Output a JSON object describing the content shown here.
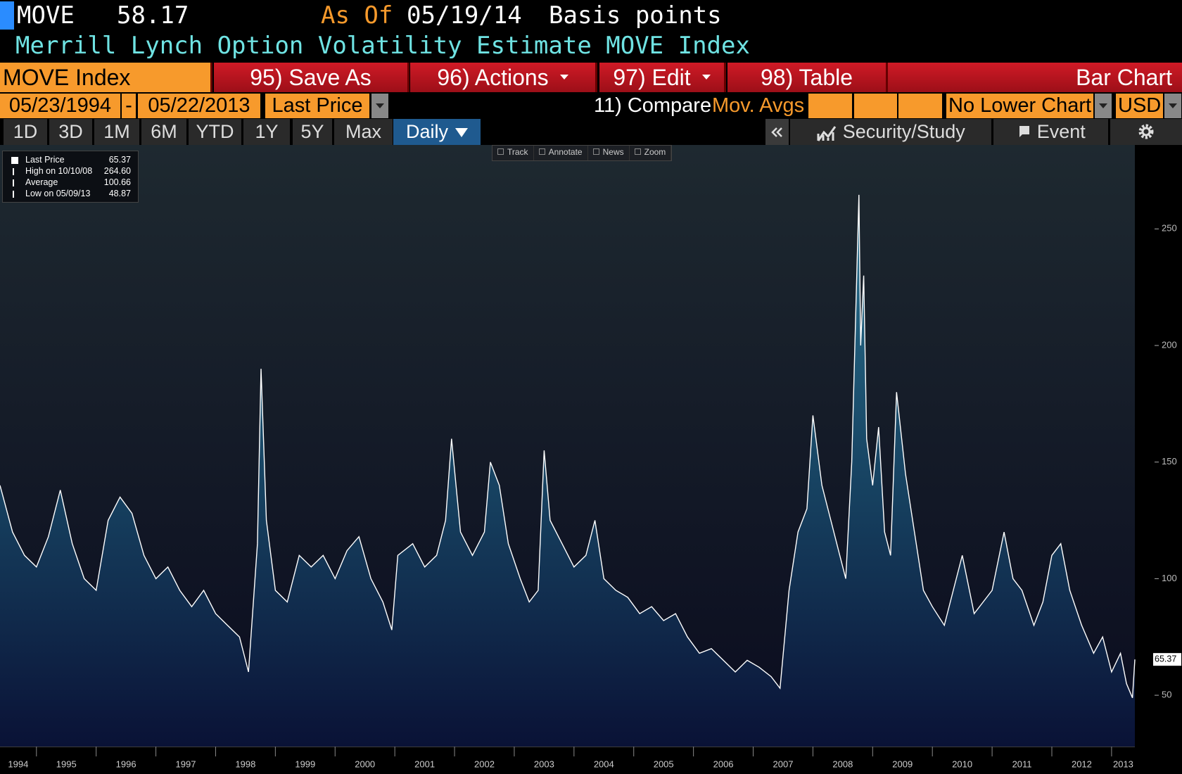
{
  "header": {
    "ticker": "MOVE",
    "last": "58.17",
    "as_of_label": "As Of",
    "as_of_date": "05/19/14",
    "units": "Basis points",
    "description": "Merrill Lynch Option Volatility Estimate MOVE Index"
  },
  "toolbar": {
    "security": "MOVE Index",
    "buttons": [
      "95) Save As",
      "96) Actions",
      "97) Edit",
      "98) Table"
    ],
    "chart_kind": "Bar Chart"
  },
  "range_bar": {
    "start_date": "05/23/1994",
    "separator": "-",
    "end_date": "05/22/2013",
    "field": "Last Price",
    "compare": "11) Compare",
    "mov_avgs": "Mov. Avgs",
    "lower_chart": "No Lower Chart",
    "currency": "USD"
  },
  "periods": [
    "1D",
    "3D",
    "1M",
    "6M",
    "YTD",
    "1Y",
    "5Y",
    "Max",
    "Daily"
  ],
  "right_tools": [
    "Security/Study",
    "Event"
  ],
  "chart_tools": [
    "Track",
    "Annotate",
    "News",
    "Zoom"
  ],
  "legend": {
    "rows": [
      {
        "value": "65.37"
      },
      {
        "label": "High on 10/10/08",
        "value": "264.60"
      },
      {
        "label": "Average",
        "value": "100.66"
      },
      {
        "label": "Low on 05/09/13",
        "value": "48.87"
      }
    ]
  },
  "chart_data": {
    "type": "area",
    "x": [
      1994.39,
      1994.6,
      1994.8,
      1995.0,
      1995.2,
      1995.4,
      1995.6,
      1995.8,
      1996.0,
      1996.2,
      1996.4,
      1996.6,
      1996.8,
      1997.0,
      1997.2,
      1997.4,
      1997.6,
      1997.8,
      1998.0,
      1998.2,
      1998.4,
      1998.55,
      1998.7,
      1998.76,
      1998.85,
      1999.0,
      1999.2,
      1999.4,
      1999.6,
      1999.8,
      2000.0,
      2000.2,
      2000.4,
      2000.6,
      2000.8,
      2000.95,
      2001.05,
      2001.3,
      2001.5,
      2001.7,
      2001.85,
      2001.95,
      2002.1,
      2002.3,
      2002.5,
      2002.6,
      2002.75,
      2002.9,
      2003.1,
      2003.25,
      2003.4,
      2003.5,
      2003.6,
      2003.8,
      2004.0,
      2004.2,
      2004.35,
      2004.5,
      2004.7,
      2004.9,
      2005.1,
      2005.3,
      2005.5,
      2005.7,
      2005.9,
      2006.1,
      2006.3,
      2006.5,
      2006.7,
      2006.9,
      2007.1,
      2007.3,
      2007.45,
      2007.6,
      2007.75,
      2007.9,
      2008.0,
      2008.15,
      2008.3,
      2008.45,
      2008.55,
      2008.65,
      2008.77,
      2008.8,
      2008.85,
      2008.9,
      2009.0,
      2009.1,
      2009.2,
      2009.3,
      2009.4,
      2009.55,
      2009.7,
      2009.85,
      2010.0,
      2010.2,
      2010.35,
      2010.5,
      2010.7,
      2010.85,
      2011.0,
      2011.2,
      2011.35,
      2011.5,
      2011.7,
      2011.85,
      2012.0,
      2012.15,
      2012.3,
      2012.5,
      2012.7,
      2012.85,
      2013.0,
      2013.15,
      2013.25,
      2013.35,
      2013.39
    ],
    "series": [
      {
        "name": "Last Price",
        "color": "#ffffff",
        "values": [
          140,
          120,
          110,
          105,
          118,
          138,
          115,
          100,
          95,
          125,
          135,
          128,
          110,
          100,
          105,
          95,
          88,
          95,
          85,
          80,
          75,
          60,
          115,
          190,
          125,
          95,
          90,
          110,
          105,
          110,
          100,
          112,
          118,
          100,
          90,
          78,
          110,
          115,
          105,
          110,
          125,
          160,
          120,
          110,
          120,
          150,
          140,
          115,
          100,
          90,
          95,
          155,
          125,
          115,
          105,
          110,
          125,
          100,
          95,
          92,
          85,
          88,
          82,
          85,
          75,
          68,
          70,
          65,
          60,
          65,
          62,
          58,
          53,
          95,
          120,
          130,
          170,
          140,
          125,
          110,
          100,
          150,
          264.6,
          200,
          230,
          160,
          140,
          165,
          120,
          110,
          180,
          145,
          120,
          95,
          88,
          80,
          95,
          110,
          85,
          90,
          95,
          120,
          100,
          95,
          80,
          90,
          110,
          115,
          95,
          80,
          68,
          75,
          60,
          68,
          55,
          48.87,
          65.37
        ]
      }
    ],
    "xlim": [
      1994.39,
      2013.39
    ],
    "ylim": [
      28,
      286
    ],
    "xticks": [
      {
        "value": 1994.5,
        "label": "1994"
      },
      {
        "value": 1995.5,
        "label": "1995"
      },
      {
        "value": 1996.5,
        "label": "1996"
      },
      {
        "value": 1997.5,
        "label": "1997"
      },
      {
        "value": 1998.5,
        "label": "1998"
      },
      {
        "value": 1999.5,
        "label": "1999"
      },
      {
        "value": 2000.5,
        "label": "2000"
      },
      {
        "value": 2001.5,
        "label": "2001"
      },
      {
        "value": 2002.5,
        "label": "2002"
      },
      {
        "value": 2003.5,
        "label": "2003"
      },
      {
        "value": 2004.5,
        "label": "2004"
      },
      {
        "value": 2005.5,
        "label": "2005"
      },
      {
        "value": 2006.5,
        "label": "2006"
      },
      {
        "value": 2007.5,
        "label": "2007"
      },
      {
        "value": 2008.5,
        "label": "2008"
      },
      {
        "value": 2009.5,
        "label": "2009"
      },
      {
        "value": 2010.5,
        "label": "2010"
      },
      {
        "value": 2011.5,
        "label": "2011"
      },
      {
        "value": 2012.5,
        "label": "2012"
      },
      {
        "value": 2013.5,
        "label": "2013"
      }
    ],
    "yticks": [
      50,
      100,
      150,
      200,
      250
    ]
  }
}
